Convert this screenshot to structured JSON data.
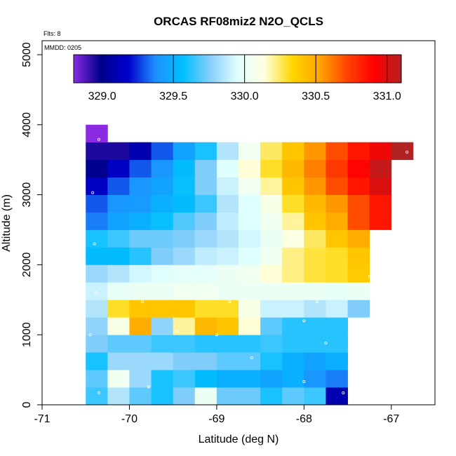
{
  "chart_data": {
    "type": "heatmap",
    "title": "ORCAS RF08miz2 N2O_QCLS",
    "annotations": {
      "flights": "Flts: 8",
      "date": "MMDD: 0205"
    },
    "xlabel": "Latitude (deg N)",
    "ylabel": "Altitude (m)",
    "xlim": [
      -71,
      -66.5
    ],
    "ylim": [
      0,
      5200
    ],
    "x_ticks": [
      -71,
      -70,
      -69,
      -68,
      -67
    ],
    "x_tick_labels": [
      "-71",
      "-70",
      "-69",
      "-68",
      "-67"
    ],
    "y_ticks": [
      0,
      1000,
      2000,
      3000,
      4000,
      5000
    ],
    "y_tick_labels": [
      "0",
      "1000",
      "2000",
      "3000",
      "4000",
      "5000"
    ],
    "cell_lat_step": 0.25,
    "cell_alt_step": 250,
    "grid_origin_lat": -70.5,
    "grid_origin_alt": 0,
    "colorbar": {
      "range": [
        328.8,
        331.1
      ],
      "ticks": [
        329.0,
        329.5,
        330.0,
        330.5,
        331.0
      ],
      "tick_labels": [
        "329.0",
        "329.5",
        "330.0",
        "330.5",
        "331.0"
      ],
      "colors": [
        "#8a2be2",
        "#00008b",
        "#0000cd",
        "#1e90ff",
        "#00bfff",
        "#87cefa",
        "#e0ffff",
        "#ffffe0",
        "#ffd700",
        "#ffa500",
        "#ff4500",
        "#ff0000",
        "#b22222"
      ]
    },
    "grid": [
      [
        329.65,
        329.85,
        329.7,
        329.6,
        329.75,
        330.02,
        329.72,
        329.72,
        329.6,
        329.7,
        329.65,
        329.1,
        null,
        null,
        null
      ],
      [
        329.7,
        330.05,
        329.8,
        329.6,
        329.65,
        329.55,
        329.5,
        329.5,
        329.45,
        329.5,
        329.4,
        329.35,
        null,
        null,
        null
      ],
      [
        329.6,
        329.8,
        329.8,
        329.8,
        329.75,
        329.75,
        329.7,
        329.7,
        329.6,
        329.5,
        329.45,
        329.5,
        null,
        null,
        null
      ],
      [
        329.75,
        329.7,
        329.7,
        329.65,
        329.65,
        329.62,
        329.62,
        329.62,
        329.65,
        329.62,
        329.62,
        329.62,
        null,
        null,
        null
      ],
      [
        329.78,
        330.1,
        330.5,
        329.78,
        330.2,
        330.45,
        330.4,
        330.15,
        329.7,
        329.62,
        329.62,
        329.62,
        null,
        null,
        null
      ],
      [
        329.85,
        330.3,
        330.4,
        330.4,
        330.4,
        330.3,
        330.3,
        330.1,
        329.9,
        329.9,
        329.85,
        329.9,
        329.75,
        null,
        null
      ],
      [
        329.9,
        330.0,
        330.02,
        330.02,
        330.05,
        330.05,
        330.02,
        330.02,
        330.02,
        330.02,
        330.02,
        330.0,
        330.02,
        null,
        null
      ],
      [
        329.8,
        329.85,
        329.92,
        329.95,
        329.98,
        329.98,
        330.02,
        330.05,
        330.15,
        330.22,
        330.28,
        330.3,
        330.38,
        null,
        null
      ],
      [
        329.55,
        329.55,
        329.62,
        329.75,
        329.8,
        329.88,
        329.9,
        329.95,
        330.05,
        330.22,
        330.28,
        330.3,
        330.4,
        null,
        null
      ],
      [
        329.6,
        329.65,
        329.72,
        329.72,
        329.75,
        329.8,
        329.85,
        329.92,
        330.02,
        330.12,
        330.25,
        330.4,
        330.5,
        null,
        null
      ],
      [
        329.35,
        329.45,
        329.5,
        329.58,
        329.68,
        329.75,
        329.88,
        329.95,
        330.05,
        330.2,
        330.4,
        330.5,
        330.7,
        330.85,
        null
      ],
      [
        329.3,
        329.4,
        329.42,
        329.5,
        329.55,
        329.65,
        329.85,
        329.95,
        330.1,
        330.3,
        330.45,
        330.55,
        330.7,
        330.85,
        null
      ],
      [
        329.15,
        329.3,
        329.4,
        329.45,
        329.58,
        329.75,
        329.9,
        330.05,
        330.2,
        330.4,
        330.55,
        330.7,
        330.85,
        331.0,
        null
      ],
      [
        329.0,
        329.15,
        329.3,
        329.4,
        329.55,
        329.75,
        329.95,
        330.15,
        330.3,
        330.45,
        330.6,
        330.75,
        330.9,
        331.05,
        null
      ],
      [
        328.95,
        328.95,
        329.1,
        329.3,
        329.45,
        329.6,
        329.85,
        330.05,
        330.25,
        330.4,
        330.55,
        330.7,
        330.85,
        330.95,
        331.1
      ],
      [
        328.8,
        null,
        null,
        null,
        null,
        null,
        null,
        null,
        null,
        null,
        null,
        null,
        null,
        null,
        null
      ]
    ],
    "flight_points": [
      [
        -70.35,
        170
      ],
      [
        -69.78,
        255
      ],
      [
        -67.55,
        170
      ],
      [
        -67.42,
        170
      ],
      [
        -68.0,
        330
      ],
      [
        -68.6,
        670
      ],
      [
        -70.45,
        1000
      ],
      [
        -70.02,
        1150
      ],
      [
        -69.45,
        1050
      ],
      [
        -69.0,
        1000
      ],
      [
        -68.0,
        1200
      ],
      [
        -67.75,
        880
      ],
      [
        -69.85,
        1470
      ],
      [
        -68.85,
        1470
      ],
      [
        -70.38,
        1600
      ],
      [
        -67.85,
        1470
      ],
      [
        -67.25,
        1830
      ],
      [
        -70.4,
        2300
      ],
      [
        -70.42,
        3030
      ],
      [
        -66.95,
        2720
      ],
      [
        -70.35,
        3790
      ],
      [
        -66.82,
        3610
      ]
    ]
  }
}
